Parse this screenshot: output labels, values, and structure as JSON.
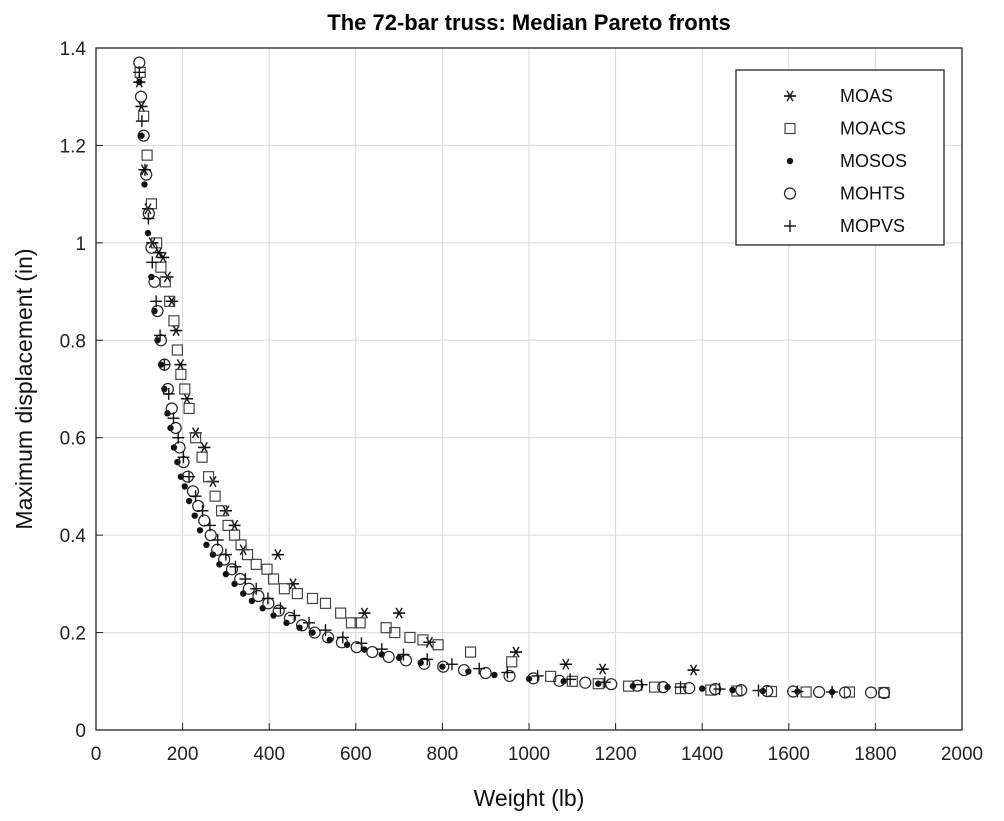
{
  "chart_data": {
    "type": "scatter",
    "title": "The 72-bar truss: Median Pareto fronts",
    "xlabel": "Weight (lb)",
    "ylabel": "Maximum displacement (in)",
    "xlim": [
      0,
      2000
    ],
    "ylim": [
      0,
      1.4
    ],
    "xticks": [
      0,
      200,
      400,
      600,
      800,
      1000,
      1200,
      1400,
      1600,
      1800,
      2000
    ],
    "yticks": [
      0,
      0.2,
      0.4,
      0.6,
      0.8,
      1,
      1.2,
      1.4
    ],
    "xtick_labels": [
      "0",
      "200",
      "400",
      "600",
      "800",
      "1000",
      "1200",
      "1400",
      "1600",
      "1800",
      "2000"
    ],
    "ytick_labels": [
      "0",
      "0.2",
      "0.4",
      "0.6",
      "0.8",
      "1",
      "1.2",
      "1.4"
    ],
    "grid": true,
    "legend_position": "top-right",
    "series": [
      {
        "name": "MOAS",
        "marker": "asterisk",
        "x": [
          100,
          105,
          112,
          120,
          130,
          145,
          155,
          165,
          175,
          185,
          195,
          210,
          230,
          250,
          270,
          300,
          320,
          340,
          420,
          455,
          620,
          700,
          770,
          970,
          1085,
          1170,
          1380
        ],
        "y": [
          1.33,
          1.28,
          1.15,
          1.07,
          1.0,
          0.98,
          0.97,
          0.93,
          0.88,
          0.82,
          0.75,
          0.68,
          0.61,
          0.58,
          0.51,
          0.45,
          0.42,
          0.37,
          0.36,
          0.3,
          0.24,
          0.24,
          0.18,
          0.16,
          0.135,
          0.125,
          0.123
        ]
      },
      {
        "name": "MOACS",
        "marker": "square",
        "x": [
          102,
          110,
          118,
          128,
          140,
          150,
          160,
          170,
          180,
          188,
          196,
          205,
          215,
          230,
          245,
          260,
          275,
          290,
          305,
          320,
          335,
          350,
          370,
          395,
          410,
          435,
          465,
          500,
          530,
          565,
          590,
          610,
          670,
          690,
          725,
          755,
          790,
          865,
          960,
          1050,
          1100,
          1160,
          1230,
          1290,
          1350,
          1420,
          1480,
          1560,
          1640,
          1740,
          1820
        ],
        "y": [
          1.35,
          1.26,
          1.18,
          1.08,
          1.0,
          0.95,
          0.92,
          0.88,
          0.84,
          0.78,
          0.73,
          0.7,
          0.66,
          0.6,
          0.56,
          0.52,
          0.48,
          0.45,
          0.42,
          0.4,
          0.38,
          0.36,
          0.34,
          0.33,
          0.31,
          0.29,
          0.28,
          0.27,
          0.26,
          0.24,
          0.22,
          0.22,
          0.21,
          0.2,
          0.19,
          0.185,
          0.175,
          0.16,
          0.14,
          0.11,
          0.1,
          0.095,
          0.09,
          0.088,
          0.085,
          0.082,
          0.08,
          0.079,
          0.078,
          0.078,
          0.077
        ]
      },
      {
        "name": "MOSOS",
        "marker": "dot",
        "x": [
          100,
          105,
          112,
          120,
          128,
          135,
          142,
          150,
          158,
          165,
          172,
          180,
          188,
          196,
          205,
          215,
          228,
          240,
          255,
          270,
          285,
          300,
          320,
          340,
          360,
          385,
          410,
          440,
          470,
          500,
          540,
          580,
          620,
          660,
          700,
          750,
          800,
          860,
          920,
          1000,
          1080,
          1160,
          1240,
          1320,
          1400,
          1470,
          1540,
          1620,
          1700
        ],
        "y": [
          1.33,
          1.22,
          1.12,
          1.02,
          0.93,
          0.86,
          0.8,
          0.75,
          0.7,
          0.65,
          0.62,
          0.58,
          0.55,
          0.52,
          0.5,
          0.47,
          0.44,
          0.41,
          0.38,
          0.36,
          0.34,
          0.32,
          0.3,
          0.28,
          0.265,
          0.25,
          0.235,
          0.22,
          0.21,
          0.2,
          0.185,
          0.175,
          0.165,
          0.155,
          0.148,
          0.138,
          0.13,
          0.12,
          0.113,
          0.105,
          0.1,
          0.095,
          0.09,
          0.088,
          0.085,
          0.082,
          0.08,
          0.079,
          0.078
        ]
      },
      {
        "name": "MOHTS",
        "marker": "circle",
        "x": [
          100,
          104,
          110,
          116,
          122,
          128,
          135,
          142,
          150,
          158,
          166,
          175,
          184,
          193,
          202,
          212,
          224,
          236,
          250,
          265,
          280,
          296,
          314,
          333,
          353,
          375,
          398,
          422,
          448,
          476,
          505,
          536,
          568,
          602,
          638,
          676,
          716,
          758,
          802,
          850,
          900,
          955,
          1010,
          1070,
          1130,
          1190,
          1250,
          1310,
          1370,
          1430,
          1490,
          1550,
          1610,
          1670,
          1730,
          1790,
          1820
        ],
        "y": [
          1.37,
          1.3,
          1.22,
          1.14,
          1.06,
          0.99,
          0.92,
          0.86,
          0.8,
          0.75,
          0.7,
          0.66,
          0.62,
          0.58,
          0.55,
          0.52,
          0.49,
          0.46,
          0.43,
          0.4,
          0.37,
          0.35,
          0.33,
          0.31,
          0.29,
          0.275,
          0.26,
          0.245,
          0.23,
          0.215,
          0.2,
          0.19,
          0.18,
          0.17,
          0.16,
          0.15,
          0.143,
          0.136,
          0.13,
          0.123,
          0.117,
          0.111,
          0.106,
          0.101,
          0.097,
          0.094,
          0.091,
          0.088,
          0.086,
          0.084,
          0.082,
          0.08,
          0.079,
          0.078,
          0.077,
          0.077,
          0.076
        ]
      },
      {
        "name": "MOPVS",
        "marker": "plus",
        "x": [
          100,
          106,
          113,
          121,
          130,
          139,
          148,
          158,
          168,
          179,
          190,
          202,
          215,
          230,
          246,
          263,
          281,
          300,
          322,
          345,
          370,
          397,
          426,
          458,
          492,
          530,
          570,
          613,
          660,
          710,
          765,
          822,
          885,
          950,
          1020,
          1095,
          1175,
          1260,
          1350,
          1440,
          1530,
          1620,
          1700
        ],
        "y": [
          1.35,
          1.25,
          1.15,
          1.05,
          0.96,
          0.88,
          0.81,
          0.75,
          0.69,
          0.64,
          0.6,
          0.56,
          0.52,
          0.48,
          0.45,
          0.42,
          0.39,
          0.36,
          0.335,
          0.31,
          0.29,
          0.27,
          0.25,
          0.235,
          0.22,
          0.205,
          0.19,
          0.178,
          0.166,
          0.155,
          0.145,
          0.135,
          0.126,
          0.118,
          0.111,
          0.104,
          0.098,
          0.093,
          0.088,
          0.084,
          0.081,
          0.079,
          0.078
        ]
      }
    ]
  }
}
